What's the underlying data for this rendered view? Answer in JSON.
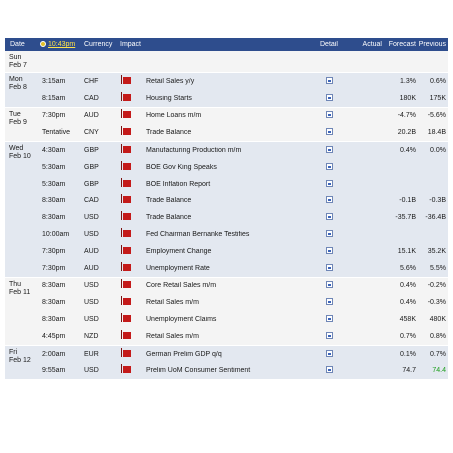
{
  "header": {
    "date": "Date",
    "time": "10:43pm",
    "currency": "Currency",
    "impact": "Impact",
    "detail": "Detail",
    "actual": "Actual",
    "forecast": "Forecast",
    "previous": "Previous"
  },
  "days": [
    {
      "day": "Sun",
      "date": "Feb 7",
      "events": []
    },
    {
      "day": "Mon",
      "date": "Feb 8",
      "events": [
        {
          "time": "3:15am",
          "currency": "CHF",
          "event": "Retail Sales y/y",
          "actual": "",
          "forecast": "1.3%",
          "previous": "0.6%"
        },
        {
          "time": "8:15am",
          "currency": "CAD",
          "event": "Housing Starts",
          "actual": "",
          "forecast": "180K",
          "previous": "175K"
        }
      ]
    },
    {
      "day": "Tue",
      "date": "Feb 9",
      "events": [
        {
          "time": "7:30pm",
          "currency": "AUD",
          "event": "Home Loans m/m",
          "actual": "",
          "forecast": "-4.7%",
          "previous": "-5.6%"
        },
        {
          "time": "Tentative",
          "currency": "CNY",
          "event": "Trade Balance",
          "actual": "",
          "forecast": "20.2B",
          "previous": "18.4B"
        }
      ]
    },
    {
      "day": "Wed",
      "date": "Feb 10",
      "events": [
        {
          "time": "4:30am",
          "currency": "GBP",
          "event": "Manufacturing Production m/m",
          "actual": "",
          "forecast": "0.4%",
          "previous": "0.0%"
        },
        {
          "time": "5:30am",
          "currency": "GBP",
          "event": "BOE Gov King Speaks",
          "actual": "",
          "forecast": "",
          "previous": ""
        },
        {
          "time": "5:30am",
          "currency": "GBP",
          "event": "BOE Inflation Report",
          "actual": "",
          "forecast": "",
          "previous": ""
        },
        {
          "time": "8:30am",
          "currency": "CAD",
          "event": "Trade Balance",
          "actual": "",
          "forecast": "-0.1B",
          "previous": "-0.3B"
        },
        {
          "time": "8:30am",
          "currency": "USD",
          "event": "Trade Balance",
          "actual": "",
          "forecast": "-35.7B",
          "previous": "-36.4B"
        },
        {
          "time": "10:00am",
          "currency": "USD",
          "event": "Fed Chairman Bernanke Testifies",
          "actual": "",
          "forecast": "",
          "previous": ""
        },
        {
          "time": "7:30pm",
          "currency": "AUD",
          "event": "Employment Change",
          "actual": "",
          "forecast": "15.1K",
          "previous": "35.2K"
        },
        {
          "time": "7:30pm",
          "currency": "AUD",
          "event": "Unemployment Rate",
          "actual": "",
          "forecast": "5.6%",
          "previous": "5.5%"
        }
      ]
    },
    {
      "day": "Thu",
      "date": "Feb 11",
      "events": [
        {
          "time": "8:30am",
          "currency": "USD",
          "event": "Core Retail Sales m/m",
          "actual": "",
          "forecast": "0.4%",
          "previous": "-0.2%"
        },
        {
          "time": "8:30am",
          "currency": "USD",
          "event": "Retail Sales m/m",
          "actual": "",
          "forecast": "0.4%",
          "previous": "-0.3%"
        },
        {
          "time": "8:30am",
          "currency": "USD",
          "event": "Unemployment Claims",
          "actual": "",
          "forecast": "458K",
          "previous": "480K"
        },
        {
          "time": "4:45pm",
          "currency": "NZD",
          "event": "Retail Sales m/m",
          "actual": "",
          "forecast": "0.7%",
          "previous": "0.8%"
        }
      ]
    },
    {
      "day": "Fri",
      "date": "Feb 12",
      "events": [
        {
          "time": "2:00am",
          "currency": "EUR",
          "event": "German Prelim GDP q/q",
          "actual": "",
          "forecast": "0.1%",
          "previous": "0.7%"
        },
        {
          "time": "9:55am",
          "currency": "USD",
          "event": "Prelim UoM Consumer Sentiment",
          "actual": "",
          "forecast": "74.7",
          "previous": "74.4",
          "previous_color": "#1b9e1b"
        }
      ]
    }
  ]
}
